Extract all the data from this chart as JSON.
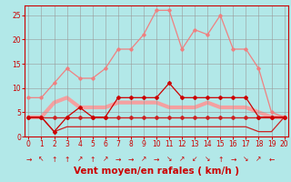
{
  "x": [
    0,
    1,
    2,
    3,
    4,
    5,
    6,
    7,
    8,
    9,
    10,
    11,
    12,
    13,
    14,
    15,
    16,
    17,
    18,
    19,
    20
  ],
  "series": [
    {
      "name": "rafales_light_thin",
      "y": [
        8,
        8,
        11,
        14,
        12,
        12,
        14,
        18,
        18,
        21,
        26,
        26,
        18,
        22,
        21,
        25,
        18,
        18,
        14,
        5,
        4
      ],
      "color": "#f08080",
      "lw": 0.9,
      "marker": "D",
      "ms": 1.8,
      "zorder": 2
    },
    {
      "name": "vent_moyen_light_thick",
      "y": [
        4,
        4,
        7,
        8,
        6,
        6,
        6,
        7,
        7,
        7,
        7,
        6,
        6,
        6,
        7,
        6,
        6,
        6,
        5,
        4,
        4
      ],
      "color": "#f4a0a0",
      "lw": 3.0,
      "marker": null,
      "ms": 0,
      "zorder": 1
    },
    {
      "name": "constante_4_red",
      "y": [
        4,
        4,
        4,
        4,
        4,
        4,
        4,
        4,
        4,
        4,
        4,
        4,
        4,
        4,
        4,
        4,
        4,
        4,
        4,
        4,
        4
      ],
      "color": "#cc2222",
      "lw": 1.0,
      "marker": "D",
      "ms": 2.0,
      "zorder": 4
    },
    {
      "name": "vent_moyen_dark_markers",
      "y": [
        4,
        4,
        1,
        4,
        6,
        4,
        4,
        8,
        8,
        8,
        8,
        11,
        8,
        8,
        8,
        8,
        8,
        8,
        4,
        4,
        4
      ],
      "color": "#cc0000",
      "lw": 0.9,
      "marker": "D",
      "ms": 2.0,
      "zorder": 5
    },
    {
      "name": "lower_dashed",
      "y": [
        4,
        4,
        1,
        2,
        2,
        2,
        2,
        2,
        2,
        2,
        2,
        2,
        2,
        2,
        2,
        2,
        2,
        2,
        1,
        1,
        4
      ],
      "color": "#cc2222",
      "lw": 0.9,
      "marker": null,
      "ms": 0,
      "zorder": 3
    },
    {
      "name": "extra_dark",
      "y": [
        4,
        4,
        4,
        4,
        4,
        4,
        4,
        4,
        4,
        4,
        4,
        4,
        4,
        4,
        4,
        4,
        4,
        4,
        4,
        4,
        4
      ],
      "color": "#880000",
      "lw": 0.7,
      "marker": null,
      "ms": 0,
      "zorder": 2
    }
  ],
  "xlabel": "Vent moyen/en rafales ( km/h )",
  "xlabel_color": "#cc0000",
  "xlabel_fontsize": 7.5,
  "bg_color": "#b2e8e8",
  "grid_color": "#999999",
  "tick_color": "#cc0000",
  "ylim": [
    0,
    27
  ],
  "xlim": [
    -0.3,
    20.3
  ],
  "yticks": [
    0,
    5,
    10,
    15,
    20,
    25
  ],
  "xticks": [
    0,
    1,
    2,
    3,
    4,
    5,
    6,
    7,
    8,
    9,
    10,
    11,
    12,
    13,
    14,
    15,
    16,
    17,
    18,
    19,
    20
  ],
  "spine_color": "#cc0000",
  "arrow_chars": [
    "→",
    "↖",
    "↑",
    "↑",
    "↗",
    "↑",
    "↗",
    "→",
    "→",
    "↗",
    "→",
    "↘",
    "↗",
    "↙",
    "↘",
    "↑",
    "→",
    "↘",
    "↗",
    "←",
    null
  ]
}
